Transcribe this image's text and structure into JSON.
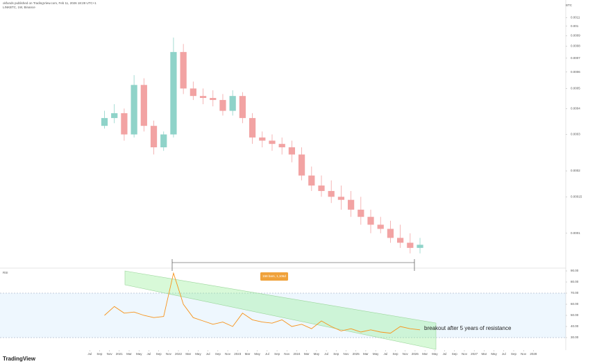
{
  "header": {
    "publisher": "okfunds published on TradingView.com, Feb 11, 2026 18:28 UTC+1",
    "symbol": "LINKBTC, 1W, Binance",
    "indicator": "RSI",
    "logo": "TradingView"
  },
  "chart_data": [
    {
      "type": "candlestick",
      "log": true,
      "currency": "BTC",
      "x": [
        3,
        5,
        7,
        9,
        11,
        13,
        15,
        17,
        19,
        21,
        23,
        25,
        27,
        29,
        31,
        33,
        35,
        37,
        39,
        41,
        43,
        45,
        47,
        49,
        51,
        53,
        55,
        57,
        59,
        61,
        63,
        65,
        67
      ],
      "open": [
        0.00033,
        0.00036,
        0.00038,
        0.0003,
        0.00052,
        0.00033,
        0.00026,
        0.0003,
        0.00075,
        0.0005,
        0.00046,
        0.00045,
        0.00044,
        0.00039,
        0.00046,
        0.00036,
        0.00029,
        0.00028,
        0.00027,
        0.00026,
        0.00024,
        0.00019,
        0.00017,
        0.00016,
        0.00015,
        0.000145,
        0.00013,
        0.00012,
        0.00011,
        0.000105,
        9.5e-05,
        9e-05,
        8.5e-05
      ],
      "high": [
        0.00039,
        0.00042,
        0.0004,
        0.00058,
        0.00056,
        0.00035,
        0.00031,
        0.00088,
        0.00082,
        0.00054,
        0.0005,
        0.00049,
        0.00047,
        0.00049,
        0.00048,
        0.00038,
        0.00031,
        0.0003,
        0.00029,
        0.00028,
        0.00026,
        0.00021,
        0.00019,
        0.00018,
        0.00017,
        0.00016,
        0.00015,
        0.00013,
        0.00012,
        0.000115,
        0.00011,
        0.0001,
        9.5e-05
      ],
      "low": [
        0.00032,
        0.00034,
        0.00028,
        0.00029,
        0.00031,
        0.00024,
        0.00025,
        0.00029,
        0.00047,
        0.00044,
        0.00042,
        0.00041,
        0.00037,
        0.00037,
        0.00034,
        0.00027,
        0.00026,
        0.00025,
        0.00024,
        0.00022,
        0.00018,
        0.00016,
        0.00015,
        0.00014,
        0.00013,
        0.00012,
        0.00011,
        0.0001,
        0.0001,
        9e-05,
        8.5e-05,
        8e-05,
        8e-05
      ],
      "close": [
        0.00036,
        0.00038,
        0.0003,
        0.00052,
        0.00033,
        0.00026,
        0.0003,
        0.00075,
        0.0005,
        0.00046,
        0.00045,
        0.00044,
        0.00039,
        0.00046,
        0.00036,
        0.00029,
        0.00028,
        0.00027,
        0.00026,
        0.00024,
        0.00019,
        0.00017,
        0.00016,
        0.00015,
        0.000145,
        0.00013,
        0.00012,
        0.00011,
        0.000105,
        9.5e-05,
        9e-05,
        8.5e-05,
        8.8e-05
      ],
      "up_color": "#8fd3c9",
      "down_color": "#f2a3a3",
      "xlim": [
        -2,
        96
      ],
      "ylim": [
        7e-05,
        0.0012
      ],
      "yticks": [
        0.0011,
        0.001,
        0.0009,
        0.0008,
        0.0007,
        0.0006,
        0.0005,
        0.0004,
        0.0003,
        0.0002,
        0.00015,
        0.0001
      ]
    },
    {
      "type": "line",
      "x": [
        3,
        5,
        7,
        9,
        11,
        13,
        15,
        17,
        19,
        21,
        23,
        25,
        27,
        29,
        31,
        33,
        35,
        37,
        39,
        41,
        43,
        45,
        47,
        49,
        51,
        53,
        55,
        57,
        59,
        61,
        63,
        65,
        67
      ],
      "values": [
        50,
        58,
        52,
        53,
        50,
        48,
        49,
        88,
        60,
        48,
        45,
        42,
        44,
        40,
        52,
        46,
        44,
        43,
        46,
        40,
        42,
        38,
        45,
        40,
        36,
        38,
        35,
        37,
        35,
        34,
        40,
        38,
        37
      ],
      "color": "#f7931a",
      "bands": [
        70,
        30
      ],
      "xlim": [
        -2,
        96
      ],
      "ylim": [
        20,
        90
      ],
      "yticks": [
        {
          "value": 90,
          "label": "90.00"
        },
        {
          "value": 80,
          "label": "80.00"
        },
        {
          "value": 70,
          "label": "70.00"
        },
        {
          "value": 60,
          "label": "60.00"
        },
        {
          "value": 50,
          "label": "50.00"
        },
        {
          "value": 40,
          "label": "40.00"
        },
        {
          "value": 30,
          "label": "30.00"
        }
      ],
      "xticks": [
        {
          "value": 0,
          "label": "Jul"
        },
        {
          "value": 2,
          "label": "Sep"
        },
        {
          "value": 4,
          "label": "Nov"
        },
        {
          "value": 6,
          "label": "2021"
        },
        {
          "value": 8,
          "label": "Mar"
        },
        {
          "value": 10,
          "label": "May"
        },
        {
          "value": 12,
          "label": "Jul"
        },
        {
          "value": 14,
          "label": "Sep"
        },
        {
          "value": 16,
          "label": "Nov"
        },
        {
          "value": 18,
          "label": "2022"
        },
        {
          "value": 20,
          "label": "Mar"
        },
        {
          "value": 22,
          "label": "May"
        },
        {
          "value": 24,
          "label": "Jul"
        },
        {
          "value": 26,
          "label": "Sep"
        },
        {
          "value": 28,
          "label": "Nov"
        },
        {
          "value": 30,
          "label": "2023"
        },
        {
          "value": 32,
          "label": "Mar"
        },
        {
          "value": 34,
          "label": "May"
        },
        {
          "value": 36,
          "label": "Jul"
        },
        {
          "value": 38,
          "label": "Sep"
        },
        {
          "value": 40,
          "label": "Nov"
        },
        {
          "value": 42,
          "label": "2024"
        },
        {
          "value": 44,
          "label": "Mar"
        },
        {
          "value": 46,
          "label": "May"
        },
        {
          "value": 48,
          "label": "Jul"
        },
        {
          "value": 50,
          "label": "Sep"
        },
        {
          "value": 52,
          "label": "Nov"
        },
        {
          "value": 54,
          "label": "2025"
        },
        {
          "value": 56,
          "label": "Mar"
        },
        {
          "value": 58,
          "label": "May"
        },
        {
          "value": 60,
          "label": "Jul"
        },
        {
          "value": 62,
          "label": "Sep"
        },
        {
          "value": 64,
          "label": "Nov"
        },
        {
          "value": 66,
          "label": "2026"
        },
        {
          "value": 68,
          "label": "Mar"
        },
        {
          "value": 70,
          "label": "May"
        },
        {
          "value": 72,
          "label": "Jul"
        },
        {
          "value": 74,
          "label": "Sep"
        },
        {
          "value": 76,
          "label": "Nov"
        },
        {
          "value": 78,
          "label": "2027"
        },
        {
          "value": 80,
          "label": "Mar"
        },
        {
          "value": 82,
          "label": "May"
        },
        {
          "value": 84,
          "label": "Jul"
        },
        {
          "value": 86,
          "label": "Sep"
        },
        {
          "value": 88,
          "label": "Nov"
        },
        {
          "value": 90,
          "label": "2028"
        }
      ],
      "annotations": {
        "measure": "158 bars, 1,106d",
        "note": "breakout after 5 years of resistance"
      }
    }
  ]
}
